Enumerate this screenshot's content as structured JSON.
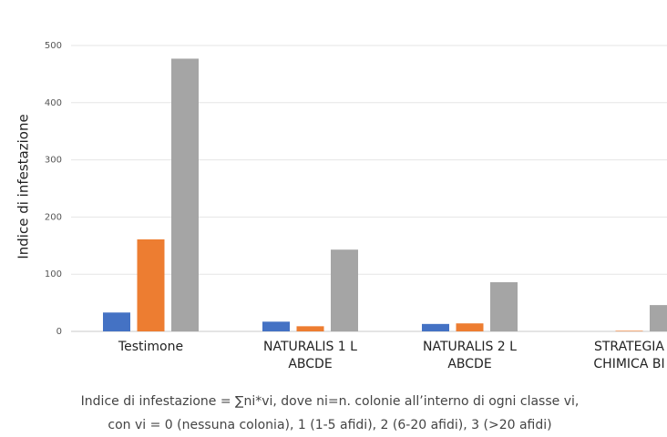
{
  "chart_data": {
    "type": "bar",
    "y_axis_label": "Indice di infestazione",
    "categories": [
      [
        "Testimone"
      ],
      [
        "NATURALIS 1 L",
        "ABCDE"
      ],
      [
        "NATURALIS 2 L",
        "ABCDE"
      ],
      [
        "STRATEGIA",
        "CHIMICA BI"
      ]
    ],
    "series": [
      {
        "color": "#4472c4",
        "values": [
          33,
          17,
          13,
          0
        ]
      },
      {
        "color": "#ed7d31",
        "values": [
          161,
          9,
          14,
          1
        ]
      },
      {
        "color": "#a5a5a5",
        "values": [
          477,
          143,
          86,
          46
        ]
      }
    ],
    "ylim": [
      0,
      500
    ],
    "yticks": [
      0,
      100,
      200,
      300,
      400,
      500
    ],
    "grid": true,
    "caption": [
      "Indice di infestazione = ∑ni*vi, dove ni=n. colonie all’interno di ogni classe vi,",
      "con vi = 0 (nessuna colonia), 1 (1-5 afidi), 2 (6-20 afidi), 3 (>20 afidi)"
    ]
  }
}
